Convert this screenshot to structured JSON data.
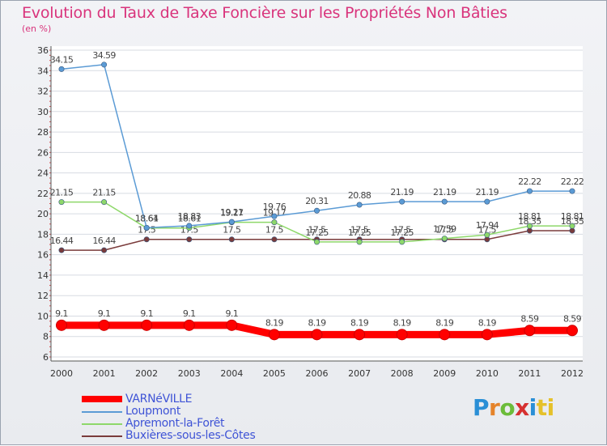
{
  "title": "Evolution du Taux de Taxe Foncière sur les Propriétés Non Bâties",
  "subtitle": "(en %)",
  "logo": [
    "P",
    "r",
    "o",
    "x",
    "i",
    "ti"
  ],
  "chart_data": {
    "type": "line",
    "title": "Evolution du Taux de Taxe Foncière sur les Propriétés Non Bâties",
    "ylabel": "(en %)",
    "categories": [
      "2000",
      "2001",
      "2002",
      "2003",
      "2004",
      "2005",
      "2006",
      "2007",
      "2008",
      "2009",
      "2010",
      "2011",
      "2012"
    ],
    "ylim": [
      6,
      36
    ],
    "yticks": [
      6,
      8,
      10,
      12,
      14,
      16,
      18,
      20,
      22,
      24,
      26,
      28,
      30,
      32,
      34,
      36
    ],
    "grid": "horizontal",
    "legend_position": "bottom-left",
    "series": [
      {
        "name": "VARNéVILLE",
        "color": "#ff0000",
        "values": [
          9.1,
          9.1,
          9.1,
          9.1,
          9.1,
          8.19,
          8.19,
          8.19,
          8.19,
          8.19,
          8.19,
          8.59,
          8.59
        ],
        "labels": [
          "9.1",
          "9.1",
          "9.1",
          "9.1",
          "9.1",
          "8.19",
          "8.19",
          "8.19",
          "8.19",
          "8.19",
          "8.19",
          "8.59",
          "8.59"
        ]
      },
      {
        "name": "Loupmont",
        "color": "#5b9bd5",
        "values": [
          34.15,
          34.59,
          18.64,
          18.83,
          19.21,
          19.76,
          20.31,
          20.88,
          21.19,
          21.19,
          21.19,
          22.22,
          22.22
        ],
        "labels": [
          "34.15",
          "34.59",
          "18.64",
          "18.83",
          "19.21",
          "19.76",
          "20.31",
          "20.88",
          "21.19",
          "21.19",
          "21.19",
          "22.22",
          "22.22"
        ]
      },
      {
        "name": "Apremont-la-Forêt",
        "color": "#8ed86a",
        "values": [
          21.15,
          21.15,
          18.61,
          18.61,
          19.17,
          19.17,
          17.25,
          17.25,
          17.25,
          17.59,
          17.94,
          18.81,
          18.81
        ],
        "labels": [
          "21.15",
          "21.15",
          "18.61",
          "18.61",
          "19.17",
          "19.17",
          "17.25",
          "17.25",
          "17.25",
          "17.59",
          "17.94",
          "18.81",
          "18.81"
        ]
      },
      {
        "name": "Buxières-sous-les-Côtes",
        "color": "#7a3b3b",
        "values": [
          16.44,
          16.44,
          17.5,
          17.5,
          17.5,
          17.5,
          17.5,
          17.5,
          17.5,
          17.5,
          17.5,
          18.35,
          18.35
        ],
        "labels": [
          "16.44",
          "16.44",
          "17.5",
          "17.5",
          "17.5",
          "17.5",
          "17.5",
          "17.5",
          "17.5",
          "17.5",
          "17.5",
          "18.35",
          "18.35"
        ]
      }
    ]
  }
}
